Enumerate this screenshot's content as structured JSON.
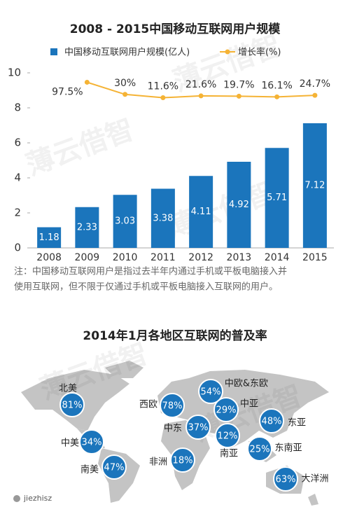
{
  "chart_data": [
    {
      "type": "bar_line",
      "title": "2008 - 2015中国移动互联网用户规模",
      "categories": [
        "2008",
        "2009",
        "2010",
        "2011",
        "2012",
        "2013",
        "2014",
        "2015"
      ],
      "series": [
        {
          "name": "中国移动互联网用户规模(亿人)",
          "color": "#1b75bc",
          "type": "bar",
          "values": [
            1.18,
            2.33,
            3.03,
            3.38,
            4.11,
            4.92,
            5.71,
            7.12
          ]
        },
        {
          "name": "增长率(%)",
          "color": "#f5b335",
          "type": "line",
          "axis": "y2",
          "values": [
            null,
            97.5,
            30,
            11.6,
            21.6,
            19.7,
            16.1,
            24.7
          ],
          "value_labels": [
            null,
            "97.5%",
            "30%",
            "11.6%",
            "21.6%",
            "19.7%",
            "16.1%",
            "24.7%"
          ]
        }
      ],
      "ylim": [
        0,
        10
      ],
      "yticks": [
        0,
        2,
        4,
        6,
        8,
        10
      ],
      "y2lim": [
        -825,
        150
      ]
    },
    {
      "type": "map",
      "title": "2014年1月各地区互联网的普及率",
      "categories": [
        "北美",
        "中美",
        "南美",
        "西欧",
        "中东",
        "非洲",
        "中欧&东欧",
        "中亚",
        "南亚",
        "东亚",
        "东南亚",
        "大洋洲"
      ],
      "values": [
        81,
        34,
        47,
        78,
        37,
        18,
        54,
        29,
        12,
        48,
        25,
        63
      ],
      "value_labels": [
        "81%",
        "34%",
        "47%",
        "78%",
        "37%",
        "18%",
        "54%",
        "29%",
        "12%",
        "48%",
        "25%",
        "63%"
      ],
      "color": "#1b75bc"
    }
  ],
  "note": [
    "注：中国移动互联网用户是指过去半年内通过手机或平板电脑接入并",
    "使用互联网，但不限于仅通过手机或平板电脑接入互联网的用户。"
  ],
  "footer": "jiezhisz",
  "watermark": "薄云借智"
}
